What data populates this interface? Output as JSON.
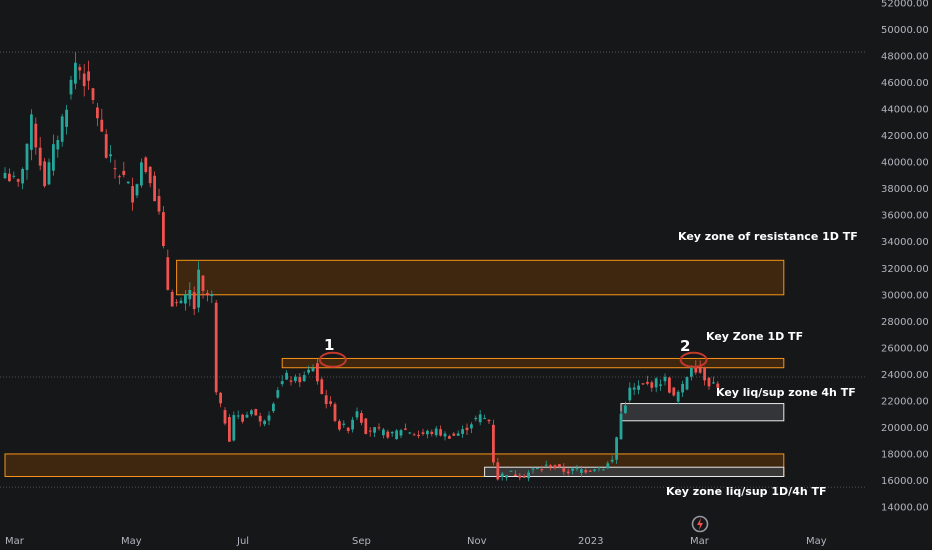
{
  "chart_data": {
    "type": "candlestick",
    "title": "",
    "ylim": [
      13500,
      52000
    ],
    "y_ticks": [
      "14000.00",
      "16000.00",
      "18000.00",
      "20000.00",
      "22000.00",
      "24000.00",
      "26000.00",
      "28000.00",
      "30000.00",
      "32000.00",
      "34000.00",
      "36000.00",
      "38000.00",
      "40000.00",
      "42000.00",
      "44000.00",
      "46000.00",
      "48000.00",
      "50000.00",
      "52000.00"
    ],
    "x_ticks": [
      "Mar",
      "May",
      "Jul",
      "Sep",
      "Nov",
      "2023",
      "Mar",
      "May"
    ],
    "grid": false,
    "colors": {
      "up": "#26a69a",
      "down": "#ef5350",
      "zone_fill": "#4a2c0c",
      "zone_border": "#f7931a",
      "support_fill": "#3a3b3e",
      "support_border": "#e8e8e8",
      "marker_circle": "#c0392b"
    },
    "close_path": [
      [
        0,
        39200
      ],
      [
        3,
        38200
      ],
      [
        6,
        43000
      ],
      [
        9,
        38500
      ],
      [
        12,
        42000
      ],
      [
        14,
        44500
      ],
      [
        16,
        47500
      ],
      [
        17,
        47000
      ],
      [
        19,
        45500
      ],
      [
        21,
        43500
      ],
      [
        23,
        40500
      ],
      [
        25,
        39500
      ],
      [
        27,
        38800
      ],
      [
        29,
        37500
      ],
      [
        31,
        40000
      ],
      [
        33,
        39000
      ],
      [
        35,
        36000
      ],
      [
        37,
        30500
      ],
      [
        38,
        29500
      ],
      [
        40,
        29200
      ],
      [
        42,
        30200
      ],
      [
        43,
        29000
      ],
      [
        44,
        31500
      ],
      [
        45,
        30000
      ],
      [
        47,
        29800
      ],
      [
        48,
        22500
      ],
      [
        50,
        20500
      ],
      [
        51,
        19200
      ],
      [
        52,
        21000
      ],
      [
        54,
        20500
      ],
      [
        56,
        21500
      ],
      [
        58,
        20300
      ],
      [
        60,
        21200
      ],
      [
        62,
        23000
      ],
      [
        64,
        23800
      ],
      [
        66,
        23500
      ],
      [
        68,
        23800
      ],
      [
        70,
        24600
      ],
      [
        72,
        22500
      ],
      [
        74,
        21500
      ],
      [
        76,
        20000
      ],
      [
        78,
        20000
      ],
      [
        80,
        21400
      ],
      [
        82,
        19800
      ],
      [
        84,
        19800
      ],
      [
        86,
        19600
      ],
      [
        88,
        19400
      ],
      [
        90,
        19900
      ],
      [
        92,
        19700
      ],
      [
        94,
        19400
      ],
      [
        96,
        19600
      ],
      [
        98,
        19700
      ],
      [
        100,
        19400
      ],
      [
        102,
        19400
      ],
      [
        104,
        19700
      ],
      [
        106,
        20400
      ],
      [
        108,
        20800
      ],
      [
        110,
        20500
      ],
      [
        111,
        17500
      ],
      [
        112,
        16200
      ],
      [
        114,
        16600
      ],
      [
        116,
        16500
      ],
      [
        118,
        16400
      ],
      [
        120,
        16800
      ],
      [
        122,
        16900
      ],
      [
        124,
        17200
      ],
      [
        126,
        16800
      ],
      [
        128,
        16700
      ],
      [
        130,
        16800
      ],
      [
        132,
        16800
      ],
      [
        134,
        17000
      ],
      [
        136,
        17000
      ],
      [
        138,
        17500
      ],
      [
        140,
        21000
      ],
      [
        142,
        22800
      ],
      [
        144,
        23000
      ],
      [
        146,
        23200
      ],
      [
        148,
        23400
      ],
      [
        150,
        23600
      ],
      [
        152,
        22200
      ],
      [
        154,
        23000
      ],
      [
        156,
        24800
      ],
      [
        158,
        24200
      ],
      [
        160,
        23400
      ],
      [
        162,
        23200
      ]
    ],
    "zones": [
      {
        "name": "Key zone of resistance 1D TF",
        "y_low": 30000,
        "y_high": 32600,
        "x_start": 39,
        "x_end": 177,
        "style": "resistance"
      },
      {
        "name": "Key Zone 1D TF",
        "y_low": 24500,
        "y_high": 25200,
        "x_start": 63,
        "x_end": 177,
        "style": "resistance"
      },
      {
        "name": "Key liq/sup zone 4h TF",
        "y_low": 20500,
        "y_high": 21800,
        "x_start": 140,
        "x_end": 177,
        "style": "support"
      },
      {
        "name": "Key zone liq/sup 1D/4h TF",
        "y_low": 16300,
        "y_high": 18000,
        "x_start": 0,
        "x_end": 177,
        "style": "resistance"
      },
      {
        "name": "",
        "y_low": 16300,
        "y_high": 17000,
        "x_start": 109,
        "x_end": 177,
        "style": "support"
      }
    ],
    "markers": [
      {
        "label": "1",
        "x": 74.5,
        "y": 25100
      },
      {
        "label": "2",
        "x": 156.5,
        "y": 25100
      }
    ],
    "dotted_levels": [
      48300,
      23800,
      15500
    ]
  },
  "annotations": {
    "a1": "Key zone of resistance 1D TF",
    "a2": "Key Zone 1D TF",
    "a3": "Key liq/sup zone 4h TF",
    "a4": "Key zone liq/sup 1D/4h TF"
  },
  "markers_text": {
    "m1": "1",
    "m2": "2"
  },
  "logo_icon": "tradingview-logo-icon"
}
